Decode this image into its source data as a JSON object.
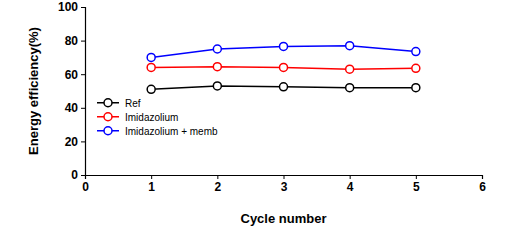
{
  "chart_data": {
    "type": "line",
    "x_label": "Cycle number",
    "y_label": "Energy efficiency(%)",
    "x": [
      1,
      2,
      3,
      4,
      5
    ],
    "series": [
      {
        "name": "Ref",
        "color": "#000000",
        "marker": "circle",
        "values": [
          51,
          53,
          52.5,
          52,
          52
        ]
      },
      {
        "name": "Imidazolium",
        "color": "#ff0000",
        "marker": "circle",
        "values": [
          64,
          64.5,
          64,
          63,
          63.5
        ]
      },
      {
        "name": "Imidazolium + memb",
        "color": "#0000ff",
        "marker": "circle",
        "values": [
          70,
          75,
          76.5,
          77,
          73.5
        ]
      }
    ],
    "xlim": [
      0,
      6
    ],
    "xticks": [
      0,
      1,
      2,
      3,
      4,
      5,
      6
    ],
    "ylim": [
      0,
      100
    ],
    "yticks": [
      0,
      20,
      40,
      60,
      80,
      100
    ],
    "grid": false,
    "legend": "left"
  }
}
